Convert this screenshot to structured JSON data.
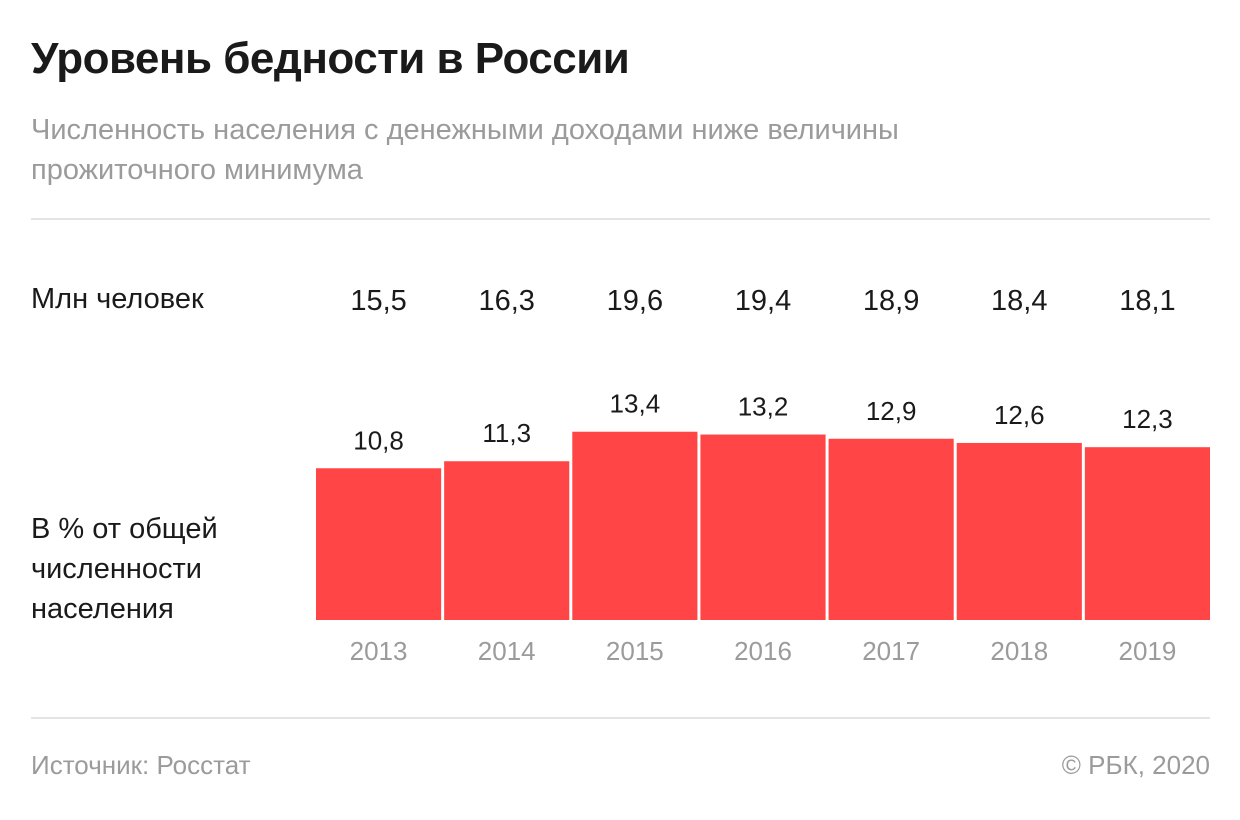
{
  "title": "Уровень бедности в России",
  "subtitle": "Численность населения с денежными доходами ниже величины прожиточного минимума",
  "row_labels": {
    "millions": "Млн человек",
    "percent": "В % от общей численности населения"
  },
  "footer": {
    "source": "Источник: Росстат",
    "copyright": "© РБК, 2020"
  },
  "colors": {
    "bar": "#ff4545",
    "year_label": "#9b9b9b",
    "value_text": "#1a1a1a"
  },
  "chart_data": {
    "type": "bar",
    "categories": [
      "2013",
      "2014",
      "2015",
      "2016",
      "2017",
      "2018",
      "2019"
    ],
    "series": [
      {
        "name": "В % от общей численности населения",
        "values": [
          10.8,
          11.3,
          13.4,
          13.2,
          12.9,
          12.6,
          12.3
        ]
      },
      {
        "name": "Млн человек",
        "values": [
          15.5,
          16.3,
          19.6,
          19.4,
          18.9,
          18.4,
          18.1
        ]
      }
    ],
    "percent_labels": [
      "10,8",
      "11,3",
      "13,4",
      "13,2",
      "12,9",
      "12,6",
      "12,3"
    ],
    "million_labels": [
      "15,5",
      "16,3",
      "19,6",
      "19,4",
      "18,9",
      "18,4",
      "18,1"
    ],
    "grid": false,
    "legend": "none"
  }
}
